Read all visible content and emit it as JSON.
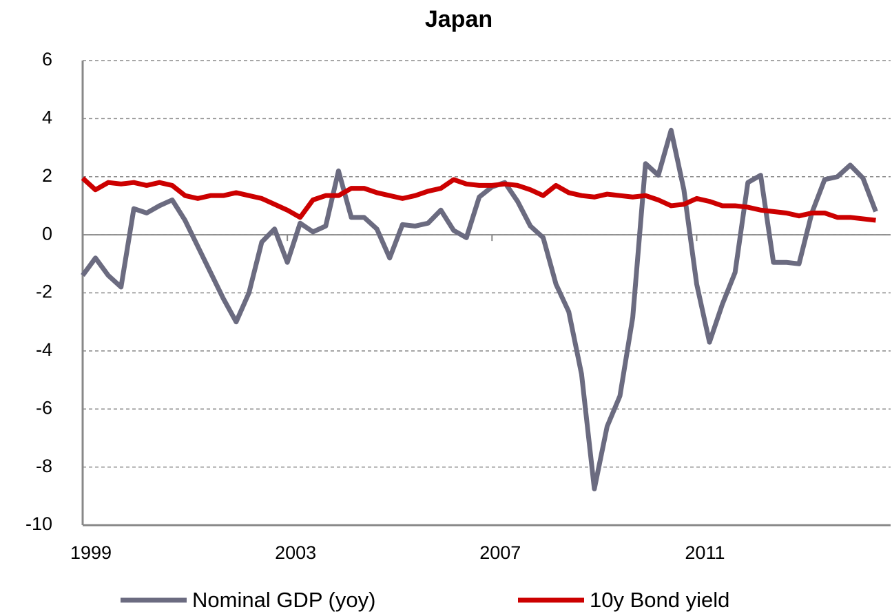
{
  "chart_data": {
    "type": "line",
    "title": "Japan",
    "x": [
      1999,
      1999.25,
      1999.5,
      1999.75,
      2000,
      2000.25,
      2000.5,
      2000.75,
      2001,
      2001.25,
      2001.5,
      2001.75,
      2002,
      2002.25,
      2002.5,
      2002.75,
      2003,
      2003.25,
      2003.5,
      2003.75,
      2004,
      2004.25,
      2004.5,
      2004.75,
      2005,
      2005.25,
      2005.5,
      2005.75,
      2006,
      2006.25,
      2006.5,
      2006.75,
      2007,
      2007.25,
      2007.5,
      2007.75,
      2008,
      2008.25,
      2008.5,
      2008.75,
      2009,
      2009.25,
      2009.5,
      2009.75,
      2010,
      2010.25,
      2010.5,
      2010.75,
      2011,
      2011.25,
      2011.5,
      2011.75,
      2012,
      2012.25,
      2012.5,
      2012.75,
      2013,
      2013.25,
      2013.5,
      2013.75,
      2014,
      2014.25,
      2014.5
    ],
    "series": [
      {
        "name": "Nominal GDP (yoy)",
        "color": "#6b6b80",
        "values": [
          -1.4,
          -0.8,
          -1.4,
          -1.8,
          0.9,
          0.75,
          1.0,
          1.2,
          0.5,
          -0.4,
          -1.3,
          -2.2,
          -3.0,
          -2.0,
          -0.25,
          0.2,
          -0.95,
          0.4,
          0.1,
          0.3,
          2.2,
          0.6,
          0.6,
          0.2,
          -0.8,
          0.35,
          0.3,
          0.4,
          0.85,
          0.15,
          -0.1,
          1.3,
          1.65,
          1.8,
          1.15,
          0.3,
          -0.1,
          -1.7,
          -2.65,
          -4.8,
          -8.75,
          -6.6,
          -5.55,
          -2.85,
          2.45,
          2.05,
          3.6,
          1.55,
          -1.7,
          -3.7,
          -2.4,
          -1.3,
          1.8,
          2.05,
          -0.95,
          -0.95,
          -1.0,
          0.75,
          1.9,
          2.0,
          2.4,
          1.95,
          0.8
        ]
      },
      {
        "name": "10y Bond yield",
        "color": "#cc0000",
        "values": [
          1.95,
          1.55,
          1.8,
          1.75,
          1.8,
          1.7,
          1.8,
          1.7,
          1.35,
          1.25,
          1.35,
          1.35,
          1.45,
          1.35,
          1.25,
          1.05,
          0.85,
          0.6,
          1.2,
          1.35,
          1.35,
          1.6,
          1.6,
          1.45,
          1.35,
          1.25,
          1.35,
          1.5,
          1.6,
          1.9,
          1.75,
          1.7,
          1.7,
          1.75,
          1.7,
          1.55,
          1.35,
          1.7,
          1.45,
          1.35,
          1.3,
          1.4,
          1.35,
          1.3,
          1.35,
          1.2,
          1.0,
          1.05,
          1.25,
          1.15,
          1.0,
          1.0,
          0.95,
          0.85,
          0.8,
          0.75,
          0.65,
          0.75,
          0.75,
          0.6,
          0.6,
          0.55,
          0.5
        ]
      }
    ],
    "xlim": [
      1999,
      2014.79
    ],
    "xticks": [
      1999,
      2003,
      2007,
      2011
    ],
    "ylim": [
      -10,
      6
    ],
    "yticks": [
      6,
      4,
      2,
      0,
      -2,
      -4,
      -6,
      -8,
      -10
    ],
    "grid": true,
    "legend": "bottom"
  }
}
